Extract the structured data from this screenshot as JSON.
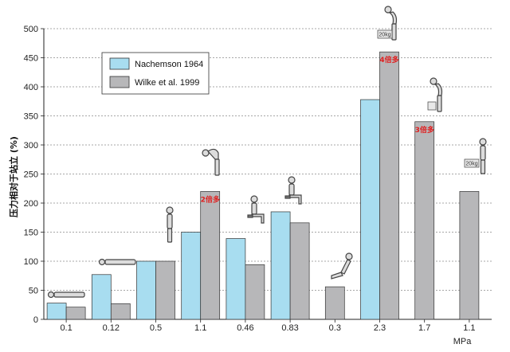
{
  "chart_data": {
    "type": "bar",
    "ylabel": "压力相对于站立 (%)",
    "xlabel": "MPa",
    "ylim": [
      0,
      500
    ],
    "yticks": [
      0,
      50,
      100,
      150,
      200,
      250,
      300,
      350,
      400,
      450,
      500
    ],
    "grid": "horizontal-dotted",
    "legend_position": "top-left",
    "categories": [
      "0.1",
      "0.12",
      "0.5",
      "1.1",
      "0.46",
      "0.83",
      "0.3",
      "2.3",
      "1.7",
      "1.1"
    ],
    "series": [
      {
        "name": "Nachemson 1964",
        "values": [
          28,
          77,
          100,
          150,
          139,
          185,
          null,
          378,
          null,
          null
        ]
      },
      {
        "name": "Wilke et al. 1999",
        "values": [
          21,
          27,
          100,
          220,
          94,
          166,
          56,
          460,
          340,
          220
        ]
      }
    ],
    "annotations": [
      {
        "text": "2倍多",
        "category": "1.1",
        "series": 1
      },
      {
        "text": "4倍多",
        "category": "2.3",
        "series": 1
      },
      {
        "text": "3倍多",
        "category": "1.7",
        "series": 1
      }
    ],
    "weight_labels": [
      "20kg",
      "20kg"
    ]
  },
  "colors": {
    "nachemson": "#a8ddf0",
    "wilke": "#b7b7b9",
    "outline": "#333333",
    "grid": "#8a8a8a",
    "annotation": "#e02020"
  },
  "icons": [
    "person-lying-icon",
    "person-standing-icon",
    "person-bending-icon",
    "person-sitting-icon",
    "person-lifting-box-icon"
  ]
}
